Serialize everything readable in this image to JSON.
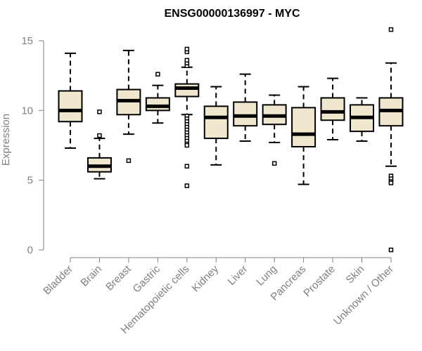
{
  "chart_data": {
    "type": "box",
    "title": "ENSG00000136997 - MYC",
    "xlabel": "",
    "ylabel": "Expression",
    "ylim": [
      0,
      15
    ],
    "yticks": [
      0,
      5,
      10,
      15
    ],
    "grid": false,
    "legend": "none",
    "colors": {
      "box_fill": "#efe8cf",
      "box_stroke": "#000000",
      "axis": "#808080"
    },
    "categories": [
      "Bladder",
      "Brain",
      "Breast",
      "Gastric",
      "Hematopoietic cells",
      "Kidney",
      "Liver",
      "Lung",
      "Pancreas",
      "Prostate",
      "Skin",
      "Unknown / Other"
    ],
    "boxes": [
      {
        "category": "Bladder",
        "whisker_low": 7.3,
        "q1": 9.2,
        "median": 10.0,
        "q3": 11.4,
        "whisker_high": 14.1,
        "outliers": []
      },
      {
        "category": "Brain",
        "whisker_low": 5.1,
        "q1": 5.6,
        "median": 6.0,
        "q3": 6.6,
        "whisker_high": 8.0,
        "outliers": [
          8.2,
          9.9
        ]
      },
      {
        "category": "Breast",
        "whisker_low": 8.3,
        "q1": 9.7,
        "median": 10.7,
        "q3": 11.5,
        "whisker_high": 14.3,
        "outliers": [
          6.4
        ]
      },
      {
        "category": "Gastric",
        "whisker_low": 9.1,
        "q1": 10.0,
        "median": 10.3,
        "q3": 10.9,
        "whisker_high": 11.8,
        "outliers": [
          12.6
        ]
      },
      {
        "category": "Hematopoietic cells",
        "whisker_low": 9.7,
        "q1": 11.0,
        "median": 11.6,
        "q3": 11.9,
        "whisker_high": 13.1,
        "outliers": [
          13.2,
          13.4,
          13.6,
          14.2,
          14.4,
          9.6,
          9.4,
          9.2,
          9.0,
          8.8,
          8.6,
          8.4,
          8.2,
          8.0,
          7.8,
          7.6,
          7.5,
          6.0,
          4.6
        ]
      },
      {
        "category": "Kidney",
        "whisker_low": 6.1,
        "q1": 8.0,
        "median": 9.5,
        "q3": 10.3,
        "whisker_high": 11.7,
        "outliers": []
      },
      {
        "category": "Liver",
        "whisker_low": 7.8,
        "q1": 8.9,
        "median": 9.6,
        "q3": 10.6,
        "whisker_high": 12.6,
        "outliers": []
      },
      {
        "category": "Lung",
        "whisker_low": 7.7,
        "q1": 9.0,
        "median": 9.6,
        "q3": 10.4,
        "whisker_high": 11.1,
        "outliers": [
          6.2
        ]
      },
      {
        "category": "Pancreas",
        "whisker_low": 4.7,
        "q1": 7.4,
        "median": 8.3,
        "q3": 10.2,
        "whisker_high": 11.7,
        "outliers": []
      },
      {
        "category": "Prostate",
        "whisker_low": 7.9,
        "q1": 9.3,
        "median": 9.9,
        "q3": 10.9,
        "whisker_high": 12.3,
        "outliers": []
      },
      {
        "category": "Skin",
        "whisker_low": 7.8,
        "q1": 8.5,
        "median": 9.5,
        "q3": 10.4,
        "whisker_high": 10.9,
        "outliers": []
      },
      {
        "category": "Unknown / Other",
        "whisker_low": 6.0,
        "q1": 8.9,
        "median": 10.0,
        "q3": 10.9,
        "whisker_high": 13.4,
        "outliers": [
          15.8,
          5.3,
          5.1,
          4.9,
          4.8,
          0.0
        ]
      }
    ]
  }
}
